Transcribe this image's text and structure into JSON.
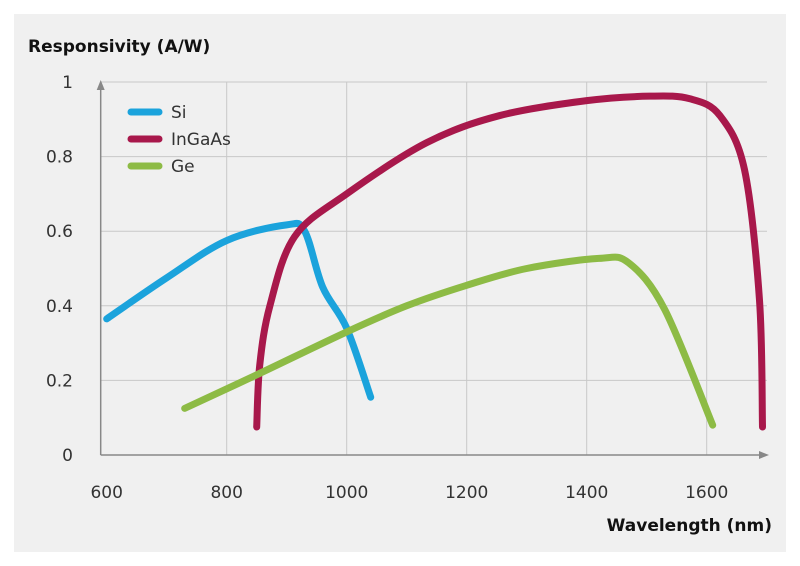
{
  "chart_data": {
    "type": "line",
    "ylabel": "Responsivity (A/W)",
    "xlabel": "Wavelength (nm)",
    "xlim": [
      590,
      1700
    ],
    "ylim": [
      0,
      1
    ],
    "xticks": [
      600,
      800,
      1000,
      1200,
      1400,
      1600
    ],
    "yticks": [
      0,
      0.2,
      0.4,
      0.6,
      0.8,
      1
    ],
    "ytick_labels": [
      "0",
      "0.2",
      "0.4",
      "0.6",
      "0.8",
      "1"
    ],
    "xtick_labels": [
      "600",
      "800",
      "1000",
      "1200",
      "1400",
      "1600"
    ],
    "grid": true,
    "legend_position": "top-left",
    "series": [
      {
        "name": "Si",
        "color": "#1ba3dc",
        "x": [
          600,
          700,
          800,
          900,
          930,
          960,
          1000,
          1040
        ],
        "y": [
          0.365,
          0.475,
          0.575,
          0.617,
          0.6,
          0.45,
          0.34,
          0.155
        ]
      },
      {
        "name": "InGaAs",
        "color": "#a8184b",
        "x": [
          850,
          855,
          872,
          913,
          1000,
          1133,
          1255,
          1400,
          1505,
          1572,
          1622,
          1663,
          1688,
          1693
        ],
        "y": [
          0.075,
          0.24,
          0.4,
          0.585,
          0.7,
          0.837,
          0.91,
          0.95,
          0.962,
          0.955,
          0.91,
          0.765,
          0.415,
          0.075
        ]
      },
      {
        "name": "Ge",
        "color": "#8dbb45",
        "x": [
          730,
          850,
          1000,
          1100,
          1200,
          1300,
          1420,
          1470,
          1530,
          1610
        ],
        "y": [
          0.125,
          0.215,
          0.33,
          0.4,
          0.455,
          0.5,
          0.527,
          0.515,
          0.39,
          0.08
        ]
      }
    ]
  }
}
